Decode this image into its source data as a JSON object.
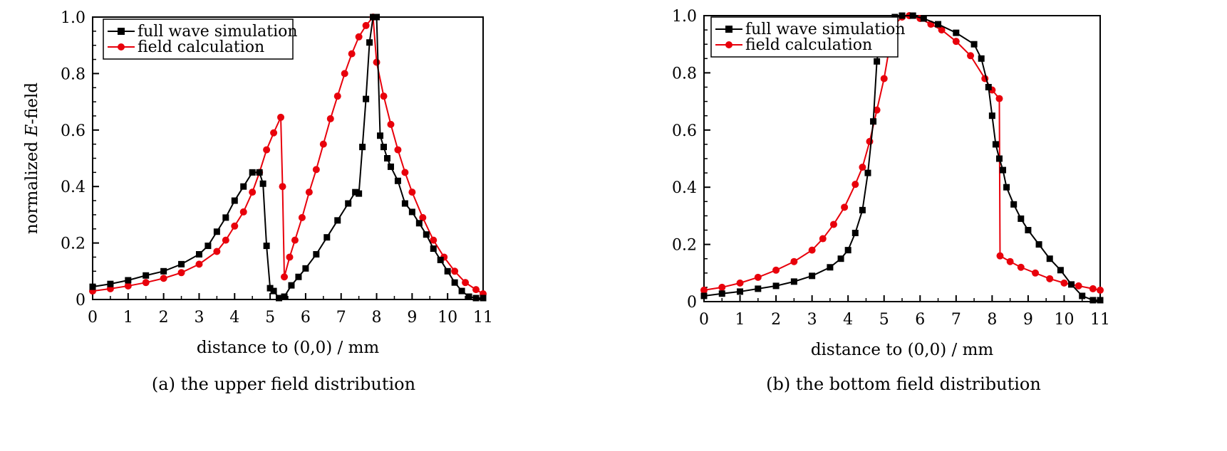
{
  "chart_data": [
    {
      "type": "line",
      "caption": "(a) the upper field distribution",
      "xlabel": "distance to (0,0) / mm",
      "ylabel_prefix": "normalized ",
      "ylabel_italic": "E",
      "ylabel_suffix": "-field",
      "xlim": [
        0,
        11
      ],
      "ylim": [
        0,
        1.0
      ],
      "xticks": [
        "0",
        "1",
        "2",
        "3",
        "4",
        "5",
        "6",
        "7",
        "8",
        "9",
        "10",
        "11"
      ],
      "yticks": [
        "0",
        "0.2",
        "0.4",
        "0.6",
        "0.8",
        "1.0"
      ],
      "legend_position": "top-left",
      "colors": {
        "full_wave": "#000000",
        "field_calc": "#e8000b"
      },
      "series": [
        {
          "name": "full wave simulation",
          "marker": "square",
          "points": [
            [
              0,
              0.045
            ],
            [
              0.5,
              0.055
            ],
            [
              1,
              0.068
            ],
            [
              1.5,
              0.085
            ],
            [
              2,
              0.1
            ],
            [
              2.5,
              0.125
            ],
            [
              3,
              0.16
            ],
            [
              3.25,
              0.19
            ],
            [
              3.5,
              0.24
            ],
            [
              3.75,
              0.29
            ],
            [
              4,
              0.35
            ],
            [
              4.25,
              0.4
            ],
            [
              4.5,
              0.45
            ],
            [
              4.7,
              0.45
            ],
            [
              4.8,
              0.41
            ],
            [
              4.9,
              0.19
            ],
            [
              5.0,
              0.04
            ],
            [
              5.1,
              0.03
            ],
            [
              5.25,
              0.005
            ],
            [
              5.4,
              0.01
            ],
            [
              5.6,
              0.05
            ],
            [
              5.8,
              0.08
            ],
            [
              6.0,
              0.11
            ],
            [
              6.3,
              0.16
            ],
            [
              6.6,
              0.22
            ],
            [
              6.9,
              0.28
            ],
            [
              7.2,
              0.34
            ],
            [
              7.4,
              0.38
            ],
            [
              7.5,
              0.375
            ],
            [
              7.6,
              0.54
            ],
            [
              7.7,
              0.71
            ],
            [
              7.8,
              0.91
            ],
            [
              7.9,
              1.0
            ],
            [
              8.0,
              1.0
            ],
            [
              8.1,
              0.58
            ],
            [
              8.2,
              0.54
            ],
            [
              8.3,
              0.5
            ],
            [
              8.4,
              0.47
            ],
            [
              8.6,
              0.42
            ],
            [
              8.8,
              0.34
            ],
            [
              9.0,
              0.31
            ],
            [
              9.2,
              0.27
            ],
            [
              9.4,
              0.23
            ],
            [
              9.6,
              0.18
            ],
            [
              9.8,
              0.14
            ],
            [
              10.0,
              0.1
            ],
            [
              10.2,
              0.06
            ],
            [
              10.4,
              0.03
            ],
            [
              10.6,
              0.01
            ],
            [
              10.8,
              0.005
            ],
            [
              11,
              0.005
            ]
          ]
        },
        {
          "name": "field calculation",
          "marker": "circle",
          "points": [
            [
              0,
              0.03
            ],
            [
              0.5,
              0.038
            ],
            [
              1,
              0.048
            ],
            [
              1.5,
              0.06
            ],
            [
              2,
              0.075
            ],
            [
              2.5,
              0.095
            ],
            [
              3,
              0.125
            ],
            [
              3.5,
              0.17
            ],
            [
              3.75,
              0.21
            ],
            [
              4,
              0.26
            ],
            [
              4.25,
              0.31
            ],
            [
              4.5,
              0.38
            ],
            [
              4.7,
              0.45
            ],
            [
              4.9,
              0.53
            ],
            [
              5.1,
              0.59
            ],
            [
              5.3,
              0.645
            ],
            [
              5.35,
              0.4
            ],
            [
              5.4,
              0.08
            ],
            [
              5.55,
              0.15
            ],
            [
              5.7,
              0.21
            ],
            [
              5.9,
              0.29
            ],
            [
              6.1,
              0.38
            ],
            [
              6.3,
              0.46
            ],
            [
              6.5,
              0.55
            ],
            [
              6.7,
              0.64
            ],
            [
              6.9,
              0.72
            ],
            [
              7.1,
              0.8
            ],
            [
              7.3,
              0.87
            ],
            [
              7.5,
              0.93
            ],
            [
              7.7,
              0.97
            ],
            [
              7.9,
              1.0
            ],
            [
              8.0,
              0.84
            ],
            [
              8.2,
              0.72
            ],
            [
              8.4,
              0.62
            ],
            [
              8.6,
              0.53
            ],
            [
              8.8,
              0.45
            ],
            [
              9.0,
              0.38
            ],
            [
              9.3,
              0.29
            ],
            [
              9.6,
              0.21
            ],
            [
              9.9,
              0.15
            ],
            [
              10.2,
              0.1
            ],
            [
              10.5,
              0.06
            ],
            [
              10.8,
              0.035
            ],
            [
              11,
              0.02
            ]
          ]
        }
      ]
    },
    {
      "type": "line",
      "caption": "(b) the bottom field distribution",
      "xlabel": "distance to (0,0) / mm",
      "ylabel_prefix": "normalized ",
      "ylabel_italic": "E",
      "ylabel_suffix": "-field",
      "xlim": [
        0,
        11
      ],
      "ylim": [
        0,
        1.0
      ],
      "xticks": [
        "0",
        "1",
        "2",
        "3",
        "4",
        "5",
        "6",
        "7",
        "8",
        "9",
        "10",
        "11"
      ],
      "yticks": [
        "0",
        "0.2",
        "0.4",
        "0.6",
        "0.8",
        "1.0"
      ],
      "legend_position": "top-left",
      "colors": {
        "full_wave": "#000000",
        "field_calc": "#e8000b"
      },
      "series": [
        {
          "name": "full wave simulation",
          "marker": "square",
          "points": [
            [
              0,
              0.02
            ],
            [
              0.5,
              0.028
            ],
            [
              1,
              0.035
            ],
            [
              1.5,
              0.045
            ],
            [
              2,
              0.055
            ],
            [
              2.5,
              0.07
            ],
            [
              3,
              0.09
            ],
            [
              3.5,
              0.12
            ],
            [
              3.8,
              0.15
            ],
            [
              4.0,
              0.18
            ],
            [
              4.2,
              0.24
            ],
            [
              4.4,
              0.32
            ],
            [
              4.55,
              0.45
            ],
            [
              4.7,
              0.63
            ],
            [
              4.8,
              0.84
            ],
            [
              4.9,
              0.93
            ],
            [
              5.1,
              0.98
            ],
            [
              5.3,
              0.995
            ],
            [
              5.5,
              1.0
            ],
            [
              5.8,
              1.0
            ],
            [
              6.1,
              0.99
            ],
            [
              6.5,
              0.97
            ],
            [
              7.0,
              0.94
            ],
            [
              7.5,
              0.9
            ],
            [
              7.7,
              0.85
            ],
            [
              7.9,
              0.75
            ],
            [
              8.0,
              0.65
            ],
            [
              8.1,
              0.55
            ],
            [
              8.2,
              0.5
            ],
            [
              8.3,
              0.46
            ],
            [
              8.4,
              0.4
            ],
            [
              8.6,
              0.34
            ],
            [
              8.8,
              0.29
            ],
            [
              9.0,
              0.25
            ],
            [
              9.3,
              0.2
            ],
            [
              9.6,
              0.15
            ],
            [
              9.9,
              0.11
            ],
            [
              10.2,
              0.06
            ],
            [
              10.5,
              0.02
            ],
            [
              10.8,
              0.005
            ],
            [
              11,
              0.005
            ]
          ]
        },
        {
          "name": "field calculation",
          "marker": "circle",
          "points": [
            [
              0,
              0.04
            ],
            [
              0.5,
              0.05
            ],
            [
              1,
              0.065
            ],
            [
              1.5,
              0.085
            ],
            [
              2,
              0.11
            ],
            [
              2.5,
              0.14
            ],
            [
              3,
              0.18
            ],
            [
              3.3,
              0.22
            ],
            [
              3.6,
              0.27
            ],
            [
              3.9,
              0.33
            ],
            [
              4.2,
              0.41
            ],
            [
              4.4,
              0.47
            ],
            [
              4.6,
              0.56
            ],
            [
              4.8,
              0.67
            ],
            [
              5.0,
              0.78
            ],
            [
              5.15,
              0.89
            ],
            [
              5.3,
              0.97
            ],
            [
              5.5,
              0.995
            ],
            [
              5.7,
              1.0
            ],
            [
              6.0,
              0.99
            ],
            [
              6.3,
              0.97
            ],
            [
              6.6,
              0.95
            ],
            [
              7.0,
              0.91
            ],
            [
              7.4,
              0.86
            ],
            [
              7.8,
              0.78
            ],
            [
              8.0,
              0.74
            ],
            [
              8.2,
              0.71
            ],
            [
              8.22,
              0.16
            ],
            [
              8.5,
              0.14
            ],
            [
              8.8,
              0.12
            ],
            [
              9.2,
              0.1
            ],
            [
              9.6,
              0.08
            ],
            [
              10.0,
              0.065
            ],
            [
              10.4,
              0.055
            ],
            [
              10.8,
              0.045
            ],
            [
              11,
              0.04
            ]
          ]
        }
      ]
    }
  ]
}
